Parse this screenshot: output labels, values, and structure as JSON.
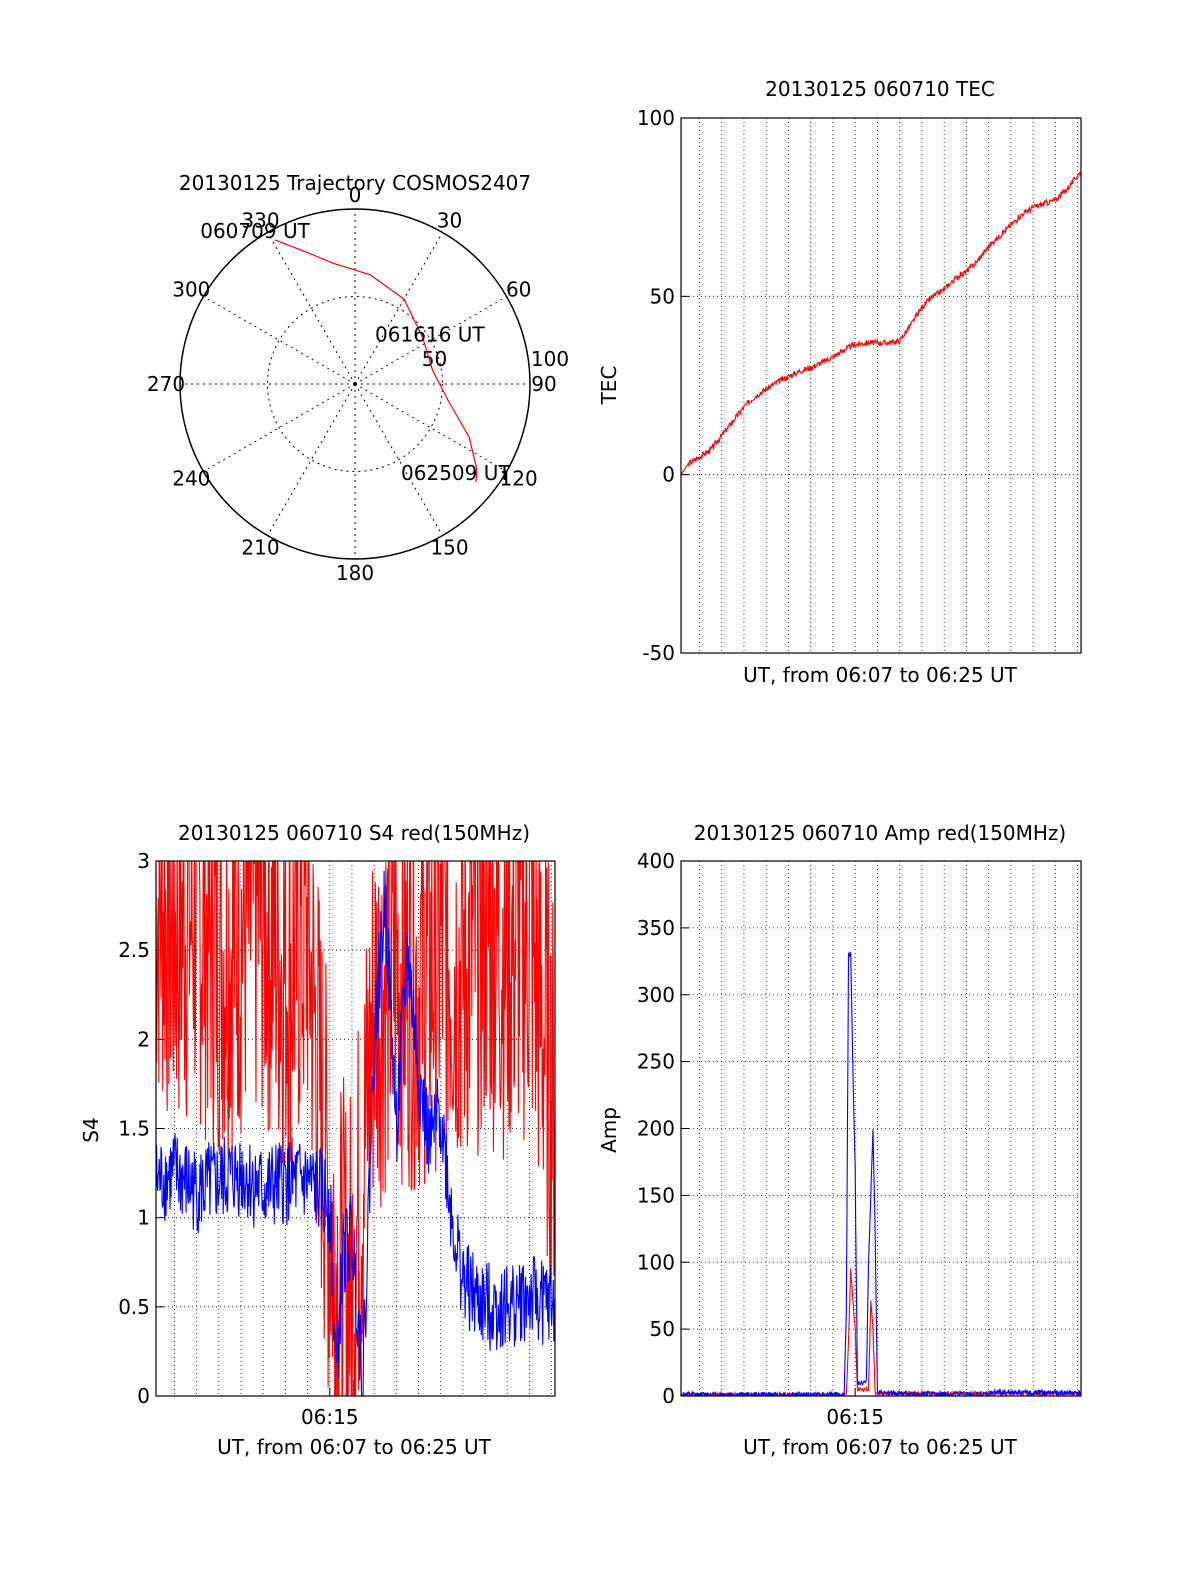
{
  "chart_data": [
    {
      "type": "polar",
      "title": "20130125 Trajectory COSMOS2407",
      "azimuth_labels": [
        "0",
        "30",
        "60",
        "90",
        "120",
        "150",
        "180",
        "210",
        "240",
        "270",
        "300",
        "330"
      ],
      "radial_ticks": [
        "50",
        "100"
      ],
      "rlim": [
        0,
        100
      ],
      "trajectory_color": "#ff0000",
      "trajectory": [
        {
          "az": 331,
          "r": 94
        },
        {
          "az": 340,
          "r": 80
        },
        {
          "az": 350,
          "r": 70
        },
        {
          "az": 8,
          "r": 63
        },
        {
          "az": 30,
          "r": 56
        },
        {
          "az": 55,
          "r": 47
        },
        {
          "az": 80,
          "r": 45
        },
        {
          "az": 100,
          "r": 54
        },
        {
          "az": 115,
          "r": 72
        },
        {
          "az": 125,
          "r": 85
        },
        {
          "az": 129,
          "r": 89
        }
      ],
      "annotations": [
        {
          "text": "060709 UT",
          "az": 331,
          "r": 94
        },
        {
          "text": "061616 UT",
          "az": 67,
          "r": 59
        },
        {
          "text": "062509 UT",
          "az": 129,
          "r": 89
        }
      ]
    },
    {
      "type": "line",
      "title": "20130125 060710 TEC",
      "xlabel": "UT, from 06:07 to 06:25 UT",
      "ylabel": "TEC",
      "xlim": [
        367.17,
        385.15
      ],
      "ylim": [
        -50,
        100
      ],
      "yticks": [
        -50,
        0,
        50,
        100
      ],
      "grid": true,
      "series": [
        {
          "color": "#ff0000",
          "points": [
            [
              367.17,
              0
            ],
            [
              367.5,
              3
            ],
            [
              368,
              5
            ],
            [
              368.5,
              7
            ],
            [
              369,
              11
            ],
            [
              369.5,
              15
            ],
            [
              370,
              19
            ],
            [
              370.5,
              22
            ],
            [
              371,
              24
            ],
            [
              371.5,
              26
            ],
            [
              372,
              27.5
            ],
            [
              372.5,
              29
            ],
            [
              373,
              30
            ],
            [
              373.5,
              31.5
            ],
            [
              374,
              33
            ],
            [
              374.5,
              35
            ],
            [
              375,
              36.5
            ],
            [
              375.5,
              37
            ],
            [
              376,
              37
            ],
            [
              376.5,
              37
            ],
            [
              377,
              37.5
            ],
            [
              377.5,
              42
            ],
            [
              378,
              47
            ],
            [
              378.5,
              50
            ],
            [
              379,
              52
            ],
            [
              379.5,
              55
            ],
            [
              380,
              57
            ],
            [
              380.5,
              60
            ],
            [
              381,
              64
            ],
            [
              381.5,
              67
            ],
            [
              382,
              70
            ],
            [
              382.5,
              73
            ],
            [
              383,
              75
            ],
            [
              383.5,
              76
            ],
            [
              384,
              77
            ],
            [
              384.5,
              80
            ],
            [
              385.15,
              85
            ]
          ]
        }
      ]
    },
    {
      "type": "line",
      "title": "20130125 060710 S4 red(150MHz)",
      "xlabel": "UT, from 06:07 to 06:25 UT",
      "ylabel": "S4",
      "xlim": [
        367.17,
        385.15
      ],
      "ylim": [
        0,
        3
      ],
      "yticks": [
        "0",
        "0.5",
        "1",
        "1.5",
        "2",
        "2.5",
        "3"
      ],
      "xtick_labels": [
        {
          "x": 375,
          "label": "06:15"
        }
      ],
      "grid": true,
      "series": [
        {
          "color": "#ff0000",
          "points": [
            [
              367.17,
              2.8
            ],
            [
              368,
              2.6
            ],
            [
              369,
              2.7
            ],
            [
              370,
              2.5
            ],
            [
              371,
              2.6
            ],
            [
              372,
              2.7
            ],
            [
              373,
              2.4
            ],
            [
              374,
              2.6
            ],
            [
              375,
              1.0
            ],
            [
              375.5,
              0.6
            ],
            [
              376,
              0.6
            ],
            [
              376.5,
              1.3
            ],
            [
              377,
              2.2
            ],
            [
              378,
              2.4
            ],
            [
              379,
              2.3
            ],
            [
              380,
              2.5
            ],
            [
              381,
              2.4
            ],
            [
              382,
              2.6
            ],
            [
              383,
              2.5
            ],
            [
              384,
              2.6
            ],
            [
              385.15,
              1.6
            ]
          ]
        },
        {
          "color": "#0000ff",
          "points": [
            [
              367.17,
              1.2
            ],
            [
              368,
              1.25
            ],
            [
              369,
              1.15
            ],
            [
              370,
              1.2
            ],
            [
              371,
              1.25
            ],
            [
              372,
              1.15
            ],
            [
              373,
              1.2
            ],
            [
              374,
              1.2
            ],
            [
              375,
              1.1
            ],
            [
              375.3,
              0.1
            ],
            [
              375.6,
              0.8
            ],
            [
              376,
              0.9
            ],
            [
              376.5,
              0.1
            ],
            [
              377,
              2.0
            ],
            [
              377.5,
              2.8
            ],
            [
              378,
              1.5
            ],
            [
              378.5,
              2.5
            ],
            [
              379,
              1.8
            ],
            [
              379.5,
              1.4
            ],
            [
              380,
              1.6
            ],
            [
              380.5,
              1.0
            ],
            [
              381,
              0.65
            ],
            [
              381.5,
              0.55
            ],
            [
              382,
              0.5
            ],
            [
              383,
              0.5
            ],
            [
              384,
              0.55
            ],
            [
              385.15,
              0.5
            ]
          ]
        }
      ]
    },
    {
      "type": "line",
      "title": "20130125 060710 Amp red(150MHz)",
      "xlabel": "UT, from 06:07 to 06:25 UT",
      "ylabel": "Amp",
      "xlim": [
        367.17,
        385.15
      ],
      "ylim": [
        0,
        400
      ],
      "yticks": [
        "0",
        "50",
        "100",
        "150",
        "200",
        "250",
        "300",
        "350",
        "400"
      ],
      "xtick_labels": [
        {
          "x": 375,
          "label": "06:15"
        }
      ],
      "grid": true,
      "series": [
        {
          "color": "#ff0000",
          "points": [
            [
              367.17,
              1
            ],
            [
              374.5,
              1
            ],
            [
              374.6,
              2
            ],
            [
              374.7,
              40
            ],
            [
              374.8,
              95
            ],
            [
              374.9,
              70
            ],
            [
              375,
              50
            ],
            [
              375.1,
              5
            ],
            [
              375.6,
              5
            ],
            [
              375.7,
              70
            ],
            [
              375.8,
              50
            ],
            [
              375.9,
              2
            ],
            [
              380,
              2
            ],
            [
              385.15,
              2
            ]
          ]
        },
        {
          "color": "#0000ff",
          "points": [
            [
              367.17,
              1
            ],
            [
              374.5,
              1
            ],
            [
              374.6,
              60
            ],
            [
              374.7,
              330
            ],
            [
              374.8,
              330
            ],
            [
              374.9,
              240
            ],
            [
              375,
              170
            ],
            [
              375.1,
              10
            ],
            [
              375.5,
              10
            ],
            [
              375.6,
              100
            ],
            [
              375.7,
              150
            ],
            [
              375.8,
              200
            ],
            [
              375.9,
              120
            ],
            [
              376,
              2
            ],
            [
              380,
              1
            ],
            [
              381,
              1
            ],
            [
              381.2,
              3
            ],
            [
              385.15,
              2
            ]
          ]
        }
      ]
    }
  ]
}
